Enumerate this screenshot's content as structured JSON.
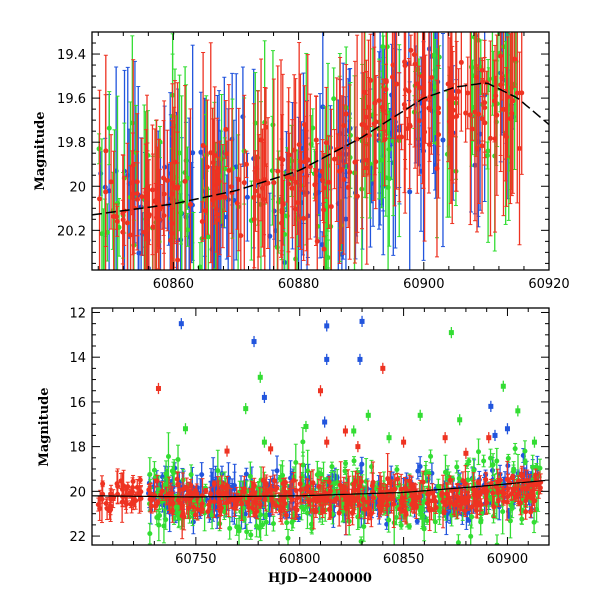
{
  "chart_data": [
    {
      "type": "scatter",
      "panel": "top",
      "title": "",
      "xlabel": "",
      "ylabel": "Magnitude",
      "xlim": [
        60847,
        60920
      ],
      "ylim": [
        20.38,
        19.3
      ],
      "y_inverted": true,
      "xticks": [
        60860,
        60880,
        60900,
        60920
      ],
      "yticks": [
        19.4,
        19.6,
        19.8,
        20,
        20.2
      ],
      "xtick_labels": [
        "60860",
        "60880",
        "60900",
        "60920"
      ],
      "ytick_labels": [
        "19.4",
        "19.6",
        "19.8",
        "20",
        "20.2"
      ],
      "series": [
        {
          "color": "#2255dd",
          "marker": "circle",
          "errorbars": true,
          "x_range": [
            60848,
            60915
          ],
          "trend": [
            [
              60848,
              20.1
            ],
            [
              60870,
              20.05
            ],
            [
              60885,
              20.0
            ],
            [
              60900,
              19.65
            ],
            [
              60915,
              19.65
            ]
          ],
          "scatter": 0.15,
          "n": 150
        },
        {
          "color": "#33dd33",
          "marker": "circle",
          "errorbars": true,
          "x_range": [
            60848,
            60916
          ],
          "trend": [
            [
              60848,
              20.05
            ],
            [
              60870,
              20.0
            ],
            [
              60885,
              19.95
            ],
            [
              60900,
              19.6
            ],
            [
              60916,
              19.6
            ]
          ],
          "scatter": 0.18,
          "n": 150
        },
        {
          "color": "#ee3322",
          "marker": "circle",
          "errorbars": true,
          "x_range": [
            60848,
            60916
          ],
          "trend": [
            [
              60848,
              20.1
            ],
            [
              60860,
              20.05
            ],
            [
              60875,
              19.95
            ],
            [
              60885,
              19.95
            ],
            [
              60895,
              19.6
            ],
            [
              60916,
              19.6
            ]
          ],
          "scatter": 0.12,
          "n": 260
        }
      ],
      "model_curve": {
        "color": "#000000",
        "points": [
          [
            60847,
            20.13
          ],
          [
            60860,
            20.08
          ],
          [
            60870,
            20.02
          ],
          [
            60880,
            19.93
          ],
          [
            60890,
            19.78
          ],
          [
            60900,
            19.6
          ],
          [
            60905,
            19.55
          ],
          [
            60910,
            19.53
          ],
          [
            60915,
            19.6
          ],
          [
            60920,
            19.72
          ]
        ]
      }
    },
    {
      "type": "scatter",
      "panel": "bottom",
      "title": "",
      "xlabel": "HJD−2400000",
      "ylabel": "Magnitude",
      "xlim": [
        60700,
        60920
      ],
      "ylim": [
        22.4,
        11.8
      ],
      "y_inverted": true,
      "xticks": [
        60750,
        60800,
        60850,
        60900
      ],
      "yticks": [
        12,
        14,
        16,
        18,
        20,
        22
      ],
      "xtick_labels": [
        "60750",
        "60800",
        "60850",
        "60900"
      ],
      "ytick_labels": [
        "12",
        "14",
        "16",
        "18",
        "20",
        "22"
      ],
      "series": [
        {
          "color": "#2255dd",
          "marker": "circle",
          "errorbars": true,
          "x_range": [
            60727,
            60916
          ],
          "base": 20.2,
          "scatter": 0.5,
          "n": 360,
          "outliers": [
            [
              60743,
              12.5
            ],
            [
              60778,
              13.3
            ],
            [
              60813,
              12.6
            ],
            [
              60830,
              12.4
            ],
            [
              60829,
              14.1
            ],
            [
              60813,
              14.1
            ],
            [
              60783,
              15.8
            ],
            [
              60812,
              16.9
            ],
            [
              60892,
              16.2
            ],
            [
              60894,
              17.5
            ],
            [
              60900,
              17.2
            ]
          ]
        },
        {
          "color": "#33dd33",
          "marker": "circle",
          "errorbars": true,
          "x_range": [
            60727,
            60916
          ],
          "base": 20.3,
          "scatter": 0.8,
          "n": 360,
          "outliers": [
            [
              60873,
              12.9
            ],
            [
              60781,
              14.9
            ],
            [
              60774,
              16.3
            ],
            [
              60833,
              16.6
            ],
            [
              60898,
              15.3
            ],
            [
              60905,
              16.4
            ],
            [
              60745,
              17.2
            ],
            [
              60803,
              17.1
            ],
            [
              60858,
              16.6
            ],
            [
              60913,
              17.8
            ],
            [
              60826,
              17.3
            ],
            [
              60783,
              17.8
            ],
            [
              60843,
              17.6
            ],
            [
              60877,
              16.8
            ]
          ]
        },
        {
          "color": "#ee3322",
          "marker": "circle",
          "errorbars": true,
          "x_range": [
            60703,
            60916
          ],
          "base": 20.3,
          "scatter": 0.4,
          "n": 420,
          "outliers": [
            [
              60732,
              15.4
            ],
            [
              60810,
              15.5
            ],
            [
              60840,
              14.5
            ],
            [
              60813,
              17.8
            ],
            [
              60828,
              18.0
            ],
            [
              60822,
              17.3
            ],
            [
              60850,
              17.8
            ],
            [
              60870,
              17.6
            ],
            [
              60880,
              18.3
            ],
            [
              60891,
              17.6
            ],
            [
              60786,
              18.1
            ],
            [
              60765,
              18.2
            ]
          ]
        }
      ],
      "model_curve": {
        "color": "#000000",
        "points": [
          [
            60700,
            20.2
          ],
          [
            60750,
            20.25
          ],
          [
            60800,
            20.2
          ],
          [
            60850,
            20.05
          ],
          [
            60890,
            19.75
          ],
          [
            60920,
            19.5
          ]
        ]
      }
    }
  ]
}
